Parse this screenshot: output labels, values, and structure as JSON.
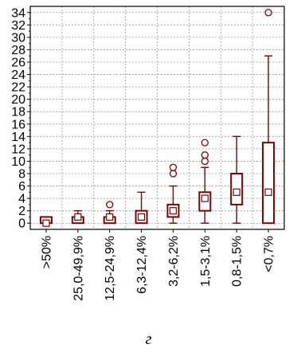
{
  "chart_data": {
    "type": "box",
    "categories": [
      ">50%",
      "25,0-49,9%",
      "12,5-24,9%",
      "6,3-12,4%",
      "3,2-6,2%",
      "1,5-3,1%",
      "0,8-1,5%",
      "<0,7%"
    ],
    "boxes": [
      {
        "median": 0,
        "q1": 0,
        "q3": 1,
        "whisker_low": 0,
        "whisker_high": 1,
        "outliers": []
      },
      {
        "median": 1,
        "q1": 0,
        "q3": 1,
        "whisker_low": 0,
        "whisker_high": 2,
        "outliers": []
      },
      {
        "median": 1,
        "q1": 0,
        "q3": 1,
        "whisker_low": 0,
        "whisker_high": 2,
        "outliers": [
          3
        ]
      },
      {
        "median": 1,
        "q1": 0,
        "q3": 2,
        "whisker_low": 0,
        "whisker_high": 5,
        "outliers": []
      },
      {
        "median": 2,
        "q1": 1,
        "q3": 3,
        "whisker_low": 0,
        "whisker_high": 6,
        "outliers": [
          8,
          9
        ]
      },
      {
        "median": 4,
        "q1": 2,
        "q3": 5,
        "whisker_low": 0,
        "whisker_high": 9,
        "outliers": [
          10,
          11,
          13
        ]
      },
      {
        "median": 5,
        "q1": 3,
        "q3": 8,
        "whisker_low": 0,
        "whisker_high": 14,
        "outliers": []
      },
      {
        "median": 5,
        "q1": 0,
        "q3": 13,
        "whisker_low": 0,
        "whisker_high": 27,
        "outliers": [
          34
        ]
      }
    ],
    "yticks": [
      "0",
      "2",
      "4",
      "6",
      "8",
      "10",
      "12",
      "14",
      "16",
      "18",
      "20",
      "22",
      "24",
      "26",
      "28",
      "30",
      "32",
      "34"
    ],
    "ylim": [
      -1,
      35
    ],
    "grid": true,
    "color": "#800000",
    "xlabel": "",
    "ylabel": "",
    "title": ""
  },
  "caption": "г"
}
